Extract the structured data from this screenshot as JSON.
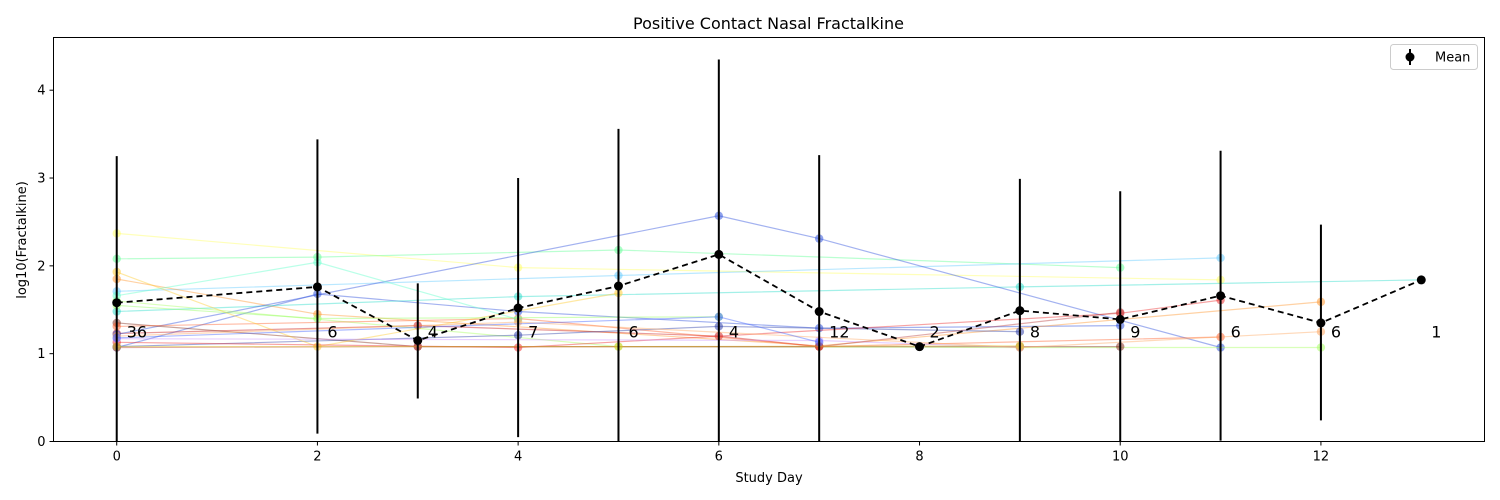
{
  "chart_data": {
    "type": "line",
    "title": "Positive Contact Nasal Fractalkine",
    "xlabel": "Study Day",
    "ylabel": "log10(Fractalkine)",
    "xlim": [
      -0.63,
      13.63
    ],
    "ylim": [
      0,
      4.6
    ],
    "xticks": [
      0,
      2,
      4,
      6,
      8,
      10,
      12
    ],
    "yticks": [
      0,
      1,
      2,
      3,
      4
    ],
    "grid": false,
    "legend": {
      "position": "top-right",
      "entries": [
        "Mean"
      ]
    },
    "mean_series": {
      "name": "Mean",
      "color": "#000000",
      "points": [
        {
          "x": 0,
          "y": 1.58,
          "lo": 0.0,
          "hi": 3.25,
          "n": "36"
        },
        {
          "x": 2,
          "y": 1.76,
          "lo": 0.09,
          "hi": 3.44,
          "n": "6"
        },
        {
          "x": 3,
          "y": 1.15,
          "lo": 0.49,
          "hi": 1.8,
          "n": "4"
        },
        {
          "x": 4,
          "y": 1.52,
          "lo": 0.05,
          "hi": 3.0,
          "n": "7"
        },
        {
          "x": 5,
          "y": 1.77,
          "lo": 0.0,
          "hi": 3.56,
          "n": "6"
        },
        {
          "x": 6,
          "y": 2.13,
          "lo": 0.0,
          "hi": 4.35,
          "n": "4"
        },
        {
          "x": 7,
          "y": 1.48,
          "lo": 0.0,
          "hi": 3.26,
          "n": "12"
        },
        {
          "x": 8,
          "y": 1.08,
          "lo": 1.08,
          "hi": 1.08,
          "n": "2"
        },
        {
          "x": 9,
          "y": 1.49,
          "lo": 0.0,
          "hi": 2.99,
          "n": "8"
        },
        {
          "x": 10,
          "y": 1.39,
          "lo": 0.0,
          "hi": 2.85,
          "n": "9"
        },
        {
          "x": 11,
          "y": 1.66,
          "lo": 0.01,
          "hi": 3.31,
          "n": "6"
        },
        {
          "x": 12,
          "y": 1.35,
          "lo": 0.24,
          "hi": 2.47,
          "n": "6"
        },
        {
          "x": 13,
          "y": 1.84,
          "lo": 1.84,
          "hi": 1.84,
          "n": "1"
        }
      ]
    },
    "subjects": [
      {
        "color": "#ffff66",
        "x": [
          0,
          4,
          11
        ],
        "y": [
          2.37,
          1.98,
          1.84
        ]
      },
      {
        "color": "#66ff99",
        "x": [
          0,
          2,
          5,
          10
        ],
        "y": [
          2.08,
          2.1,
          2.18,
          1.98
        ]
      },
      {
        "color": "#66ccff",
        "x": [
          0,
          5,
          11
        ],
        "y": [
          1.71,
          1.89,
          2.09
        ]
      },
      {
        "color": "#3355dd",
        "x": [
          0,
          2,
          4,
          7,
          10
        ],
        "y": [
          1.07,
          1.68,
          1.48,
          1.29,
          1.32
        ]
      },
      {
        "color": "#ff9933",
        "x": [
          0,
          2,
          7,
          12
        ],
        "y": [
          1.85,
          1.45,
          1.09,
          1.59
        ]
      },
      {
        "color": "#33ddcc",
        "x": [
          0,
          4,
          9,
          13
        ],
        "y": [
          1.48,
          1.65,
          1.76,
          1.84
        ]
      },
      {
        "color": "#cc2222",
        "x": [
          0,
          3,
          6,
          7
        ],
        "y": [
          1.23,
          1.32,
          1.2,
          1.08
        ]
      },
      {
        "color": "#3355dd",
        "x": [
          0,
          6,
          7,
          11
        ],
        "y": [
          1.22,
          2.57,
          2.31,
          1.07
        ]
      },
      {
        "color": "#aaff66",
        "x": [
          0,
          5,
          9,
          12
        ],
        "y": [
          1.6,
          1.08,
          1.07,
          1.07
        ]
      },
      {
        "color": "#883322",
        "x": [
          0,
          3,
          9,
          10
        ],
        "y": [
          1.35,
          1.08,
          1.08,
          1.08
        ]
      },
      {
        "color": "#ff6633",
        "x": [
          0,
          4,
          7,
          11
        ],
        "y": [
          1.31,
          1.4,
          1.08,
          1.19
        ]
      },
      {
        "color": "#3344aa",
        "x": [
          0,
          4,
          6,
          9
        ],
        "y": [
          1.08,
          1.21,
          1.31,
          1.25
        ]
      },
      {
        "color": "#ffcc33",
        "x": [
          0,
          2,
          5
        ],
        "y": [
          1.93,
          1.08,
          1.69
        ]
      },
      {
        "color": "#66ffcc",
        "x": [
          0,
          2,
          4
        ],
        "y": [
          1.66,
          2.04,
          1.39
        ]
      },
      {
        "color": "#ee3333",
        "x": [
          0,
          4,
          10,
          11
        ],
        "y": [
          1.13,
          1.07,
          1.46,
          1.61
        ]
      },
      {
        "color": "#99ff66",
        "x": [
          0,
          2,
          6
        ],
        "y": [
          1.55,
          1.4,
          1.42
        ]
      },
      {
        "color": "#cc99ff",
        "x": [
          0,
          7,
          9
        ],
        "y": [
          1.17,
          1.15,
          1.07
        ]
      },
      {
        "color": "#bb4444",
        "x": [
          0,
          3,
          7,
          10
        ],
        "y": [
          1.07,
          1.08,
          1.08,
          1.47
        ]
      },
      {
        "color": "#ffaa66",
        "x": [
          0,
          4,
          9,
          12
        ],
        "y": [
          1.2,
          1.36,
          1.07,
          1.25
        ]
      },
      {
        "color": "#ddcc33",
        "x": [
          0,
          5,
          9
        ],
        "y": [
          1.08,
          1.08,
          1.09
        ]
      },
      {
        "color": "#4466ff",
        "x": [
          0,
          6,
          7
        ],
        "y": [
          1.18,
          1.42,
          1.13
        ]
      }
    ]
  }
}
